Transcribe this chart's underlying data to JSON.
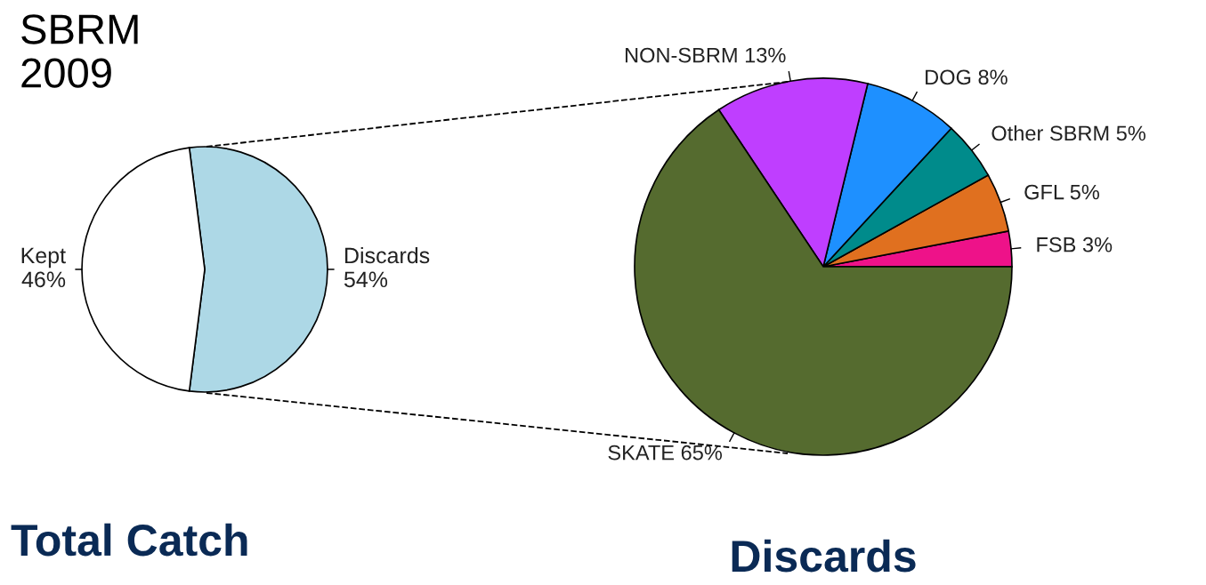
{
  "chart_data": [
    {
      "type": "pie",
      "title": "SBRM 2009",
      "categories": [
        "Discards",
        "Kept"
      ],
      "values": [
        54,
        46
      ],
      "value_labels": [
        "54%",
        "46%"
      ],
      "colors": [
        "#add8e6",
        "#ffffff"
      ],
      "annotations": [
        "Total Catch"
      ]
    },
    {
      "type": "pie",
      "categories": [
        "FSB",
        "GFL",
        "Other SBRM",
        "DOG",
        "NON-SBRM",
        "SKATE"
      ],
      "values": [
        3,
        5,
        5,
        8,
        13,
        65
      ],
      "value_labels": [
        "3%",
        "5%",
        "5%",
        "8%",
        "13%",
        "65%"
      ],
      "colors": [
        "#ee1289",
        "#e0701f",
        "#008b8b",
        "#1e90ff",
        "#bf3eff",
        "#556b2f"
      ],
      "annotations": [
        "Discards"
      ]
    }
  ]
}
